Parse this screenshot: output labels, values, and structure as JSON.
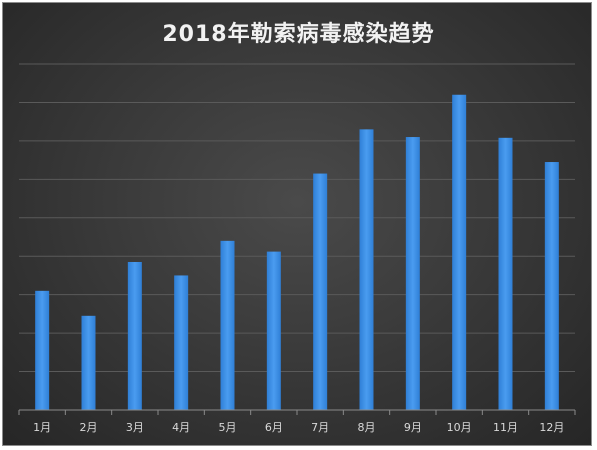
{
  "chart_data": {
    "type": "bar",
    "title": "2018年勒索病毒感染趋势",
    "xlabel": "",
    "ylabel": "",
    "categories": [
      "1月",
      "2月",
      "3月",
      "4月",
      "5月",
      "6月",
      "7月",
      "8月",
      "9月",
      "10月",
      "11月",
      "12月"
    ],
    "values": [
      3.1,
      2.45,
      3.85,
      3.5,
      4.4,
      4.12,
      6.15,
      7.3,
      7.1,
      8.2,
      7.08,
      6.45
    ],
    "ylim": [
      0,
      9
    ],
    "grid": true,
    "legend": "none",
    "bar_color": "#3d8fe0"
  }
}
